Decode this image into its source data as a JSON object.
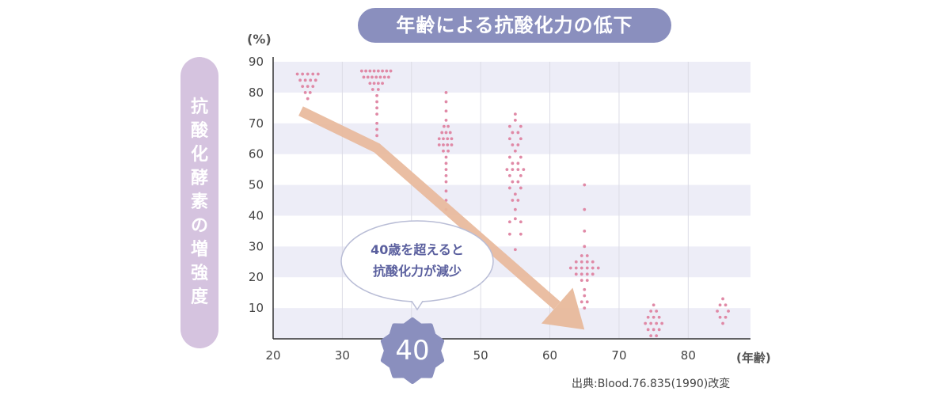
{
  "title": "年齢による抗酸化力の低下",
  "ylabel_chars": [
    "抗",
    "酸",
    "化",
    "酵",
    "素",
    "の",
    "増",
    "強",
    "度"
  ],
  "y_unit": "(%)",
  "x_unit": "(年齢)",
  "source": "出典:Blood.76.835(1990)改変",
  "annotation": {
    "line1": "40歳を超えると",
    "line2": "抗酸化力が減少"
  },
  "badge": "40",
  "colors": {
    "title_bg": "#8a8fbe",
    "ylabel_bg": "#d5c3df",
    "band": "#ededf7",
    "dot": "#e089a6",
    "arrow": "#e8b99b",
    "bubble_text": "#5a5f9e"
  },
  "chart_data": {
    "type": "scatter",
    "title": "年齢による抗酸化力の低下",
    "xlabel": "(年齢)",
    "ylabel": "抗酸化酵素の増強度",
    "xlim": [
      20,
      89
    ],
    "ylim": [
      0,
      90
    ],
    "x_ticks": [
      20,
      30,
      40,
      50,
      60,
      70,
      80
    ],
    "y_ticks": [
      10,
      20,
      30,
      40,
      50,
      60,
      70,
      80,
      90
    ],
    "grid": true,
    "clusters": [
      {
        "x": 25,
        "points": [
          [
            -1.5,
            86
          ],
          [
            -0.75,
            86
          ],
          [
            0,
            86
          ],
          [
            0.75,
            86
          ],
          [
            1.5,
            86
          ],
          [
            -1.1,
            84
          ],
          [
            -0.35,
            84
          ],
          [
            0.4,
            84
          ],
          [
            1.15,
            84
          ],
          [
            -0.75,
            82
          ],
          [
            0,
            82
          ],
          [
            0.75,
            82
          ],
          [
            -0.35,
            80
          ],
          [
            0.35,
            80
          ],
          [
            0,
            78
          ]
        ]
      },
      {
        "x": 35,
        "points": [
          [
            -2.2,
            87
          ],
          [
            -1.6,
            87
          ],
          [
            -1,
            87
          ],
          [
            -0.4,
            87
          ],
          [
            0.2,
            87
          ],
          [
            0.8,
            87
          ],
          [
            1.4,
            87
          ],
          [
            2,
            87
          ],
          [
            -1.9,
            85
          ],
          [
            -1.3,
            85
          ],
          [
            -0.7,
            85
          ],
          [
            -0.1,
            85
          ],
          [
            0.5,
            85
          ],
          [
            1.1,
            85
          ],
          [
            1.7,
            85
          ],
          [
            -1,
            83
          ],
          [
            -0.4,
            83
          ],
          [
            0.2,
            83
          ],
          [
            0.8,
            83
          ],
          [
            -0.6,
            81
          ],
          [
            0.2,
            81
          ],
          [
            0,
            79
          ],
          [
            0,
            77
          ],
          [
            0,
            75
          ],
          [
            0,
            73
          ],
          [
            0,
            70
          ],
          [
            0,
            68
          ],
          [
            0,
            66
          ]
        ]
      },
      {
        "x": 45,
        "points": [
          [
            0,
            80
          ],
          [
            0,
            77
          ],
          [
            0,
            74
          ],
          [
            0,
            71
          ],
          [
            -0.3,
            69
          ],
          [
            0.3,
            69
          ],
          [
            -0.6,
            67
          ],
          [
            0,
            67
          ],
          [
            0.6,
            67
          ],
          [
            -1,
            65
          ],
          [
            -0.4,
            65
          ],
          [
            0.2,
            65
          ],
          [
            0.8,
            65
          ],
          [
            -1,
            63
          ],
          [
            -0.4,
            63
          ],
          [
            0.2,
            63
          ],
          [
            0.8,
            63
          ],
          [
            -0.4,
            61
          ],
          [
            0.3,
            61
          ],
          [
            0,
            59
          ],
          [
            0,
            57
          ],
          [
            0,
            55
          ],
          [
            0,
            53
          ],
          [
            0,
            51
          ],
          [
            0,
            48
          ],
          [
            0,
            45
          ],
          [
            0,
            42
          ]
        ]
      },
      {
        "x": 55,
        "points": [
          [
            0,
            73
          ],
          [
            0,
            71
          ],
          [
            -0.8,
            69
          ],
          [
            0.8,
            69
          ],
          [
            -0.4,
            67
          ],
          [
            0.4,
            67
          ],
          [
            -0.8,
            65
          ],
          [
            0.8,
            65
          ],
          [
            -0.4,
            63
          ],
          [
            0.4,
            63
          ],
          [
            0,
            61
          ],
          [
            -0.8,
            59
          ],
          [
            0.8,
            59
          ],
          [
            -0.4,
            57
          ],
          [
            0.4,
            57
          ],
          [
            -1.2,
            55
          ],
          [
            -0.4,
            55
          ],
          [
            0.4,
            55
          ],
          [
            1.2,
            55
          ],
          [
            -0.8,
            53
          ],
          [
            0.8,
            53
          ],
          [
            -0.4,
            51
          ],
          [
            0.4,
            51
          ],
          [
            -0.8,
            49
          ],
          [
            0.8,
            49
          ],
          [
            0,
            47
          ],
          [
            -0.4,
            45
          ],
          [
            0.4,
            45
          ],
          [
            0,
            42
          ],
          [
            0,
            39
          ],
          [
            -0.8,
            38
          ],
          [
            0.8,
            38
          ],
          [
            -0.8,
            34
          ],
          [
            0.8,
            34
          ],
          [
            0,
            29
          ]
        ]
      },
      {
        "x": 65,
        "points": [
          [
            0,
            50
          ],
          [
            0,
            42
          ],
          [
            0,
            35
          ],
          [
            0,
            30
          ],
          [
            -0.4,
            27
          ],
          [
            0.4,
            27
          ],
          [
            -1.2,
            25
          ],
          [
            -0.4,
            25
          ],
          [
            0.4,
            25
          ],
          [
            1.2,
            25
          ],
          [
            -2,
            23
          ],
          [
            -1.2,
            23
          ],
          [
            -0.4,
            23
          ],
          [
            0.4,
            23
          ],
          [
            1.2,
            23
          ],
          [
            2,
            23
          ],
          [
            -1.2,
            21
          ],
          [
            -0.4,
            21
          ],
          [
            0.4,
            21
          ],
          [
            1.2,
            21
          ],
          [
            -0.4,
            19
          ],
          [
            0.4,
            19
          ],
          [
            0,
            16
          ],
          [
            0,
            14
          ],
          [
            -0.4,
            12
          ],
          [
            0.4,
            12
          ],
          [
            0,
            10
          ]
        ]
      },
      {
        "x": 75,
        "points": [
          [
            0,
            11
          ],
          [
            -0.4,
            9
          ],
          [
            0.4,
            9
          ],
          [
            -0.8,
            7
          ],
          [
            0,
            7
          ],
          [
            0.8,
            7
          ],
          [
            -1.2,
            5
          ],
          [
            -0.4,
            5
          ],
          [
            0.4,
            5
          ],
          [
            1.2,
            5
          ],
          [
            -0.8,
            3
          ],
          [
            0,
            3
          ],
          [
            0.8,
            3
          ],
          [
            -0.4,
            1
          ],
          [
            0.4,
            1
          ]
        ]
      },
      {
        "x": 85,
        "points": [
          [
            0,
            13
          ],
          [
            -0.4,
            11
          ],
          [
            0.4,
            11
          ],
          [
            -0.8,
            9
          ],
          [
            0.8,
            9
          ],
          [
            -0.4,
            7
          ],
          [
            0.4,
            7
          ],
          [
            0,
            5
          ]
        ]
      }
    ],
    "trend_arrow": [
      [
        24,
        74
      ],
      [
        35,
        62
      ],
      [
        65,
        3
      ]
    ]
  }
}
